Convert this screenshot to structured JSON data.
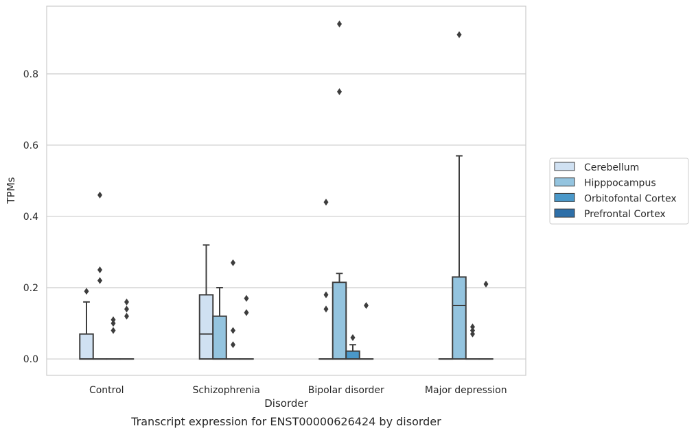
{
  "chart_data": {
    "type": "box",
    "caption": "Transcript expression for ENST00000626424 by disorder",
    "xlabel": "Disorder",
    "ylabel": "TPMs",
    "ylim": [
      -0.046,
      0.99
    ],
    "yticks": [
      0.0,
      0.2,
      0.4,
      0.6,
      0.8
    ],
    "ytick_labels": [
      "0.0",
      "0.2",
      "0.4",
      "0.6",
      "0.8"
    ],
    "grid": "horizontal",
    "legend_position": "right",
    "categories": [
      "Control",
      "Schizophrenia",
      "Bipolar disorder",
      "Major depression"
    ],
    "series": [
      {
        "name": "Cerebellum",
        "color": "#d0e1f2",
        "boxes": [
          {
            "q1": 0.0,
            "median": 0.0,
            "q3": 0.07,
            "whisker_low": 0.0,
            "whisker_high": 0.16,
            "outliers": [
              0.19
            ]
          },
          {
            "q1": 0.0,
            "median": 0.07,
            "q3": 0.18,
            "whisker_low": 0.0,
            "whisker_high": 0.32,
            "outliers": []
          },
          {
            "q1": 0.0,
            "median": 0.0,
            "q3": 0.0,
            "whisker_low": 0.0,
            "whisker_high": 0.0,
            "outliers": [
              0.18,
              0.14,
              0.44
            ]
          },
          {
            "q1": 0.0,
            "median": 0.0,
            "q3": 0.0,
            "whisker_low": 0.0,
            "whisker_high": 0.0,
            "outliers": []
          }
        ]
      },
      {
        "name": "Hipppocampus",
        "color": "#94c4df",
        "boxes": [
          {
            "q1": 0.0,
            "median": 0.0,
            "q3": 0.0,
            "whisker_low": 0.0,
            "whisker_high": 0.0,
            "outliers": [
              0.46,
              0.25,
              0.22
            ]
          },
          {
            "q1": 0.0,
            "median": 0.0,
            "q3": 0.12,
            "whisker_low": 0.0,
            "whisker_high": 0.2,
            "outliers": []
          },
          {
            "q1": 0.0,
            "median": 0.0,
            "q3": 0.215,
            "whisker_low": 0.0,
            "whisker_high": 0.24,
            "outliers": [
              0.94,
              0.75
            ]
          },
          {
            "q1": 0.0,
            "median": 0.15,
            "q3": 0.23,
            "whisker_low": 0.0,
            "whisker_high": 0.57,
            "outliers": [
              0.91
            ]
          }
        ]
      },
      {
        "name": "Orbitofontal Cortex",
        "color": "#4a98c9",
        "boxes": [
          {
            "q1": 0.0,
            "median": 0.0,
            "q3": 0.0,
            "whisker_low": 0.0,
            "whisker_high": 0.0,
            "outliers": [
              0.11,
              0.1,
              0.08
            ]
          },
          {
            "q1": 0.0,
            "median": 0.0,
            "q3": 0.0,
            "whisker_low": 0.0,
            "whisker_high": 0.0,
            "outliers": [
              0.27,
              0.08,
              0.04
            ]
          },
          {
            "q1": 0.0,
            "median": 0.0,
            "q3": 0.022,
            "whisker_low": 0.0,
            "whisker_high": 0.04,
            "outliers": [
              0.06
            ]
          },
          {
            "q1": 0.0,
            "median": 0.0,
            "q3": 0.0,
            "whisker_low": 0.0,
            "whisker_high": 0.0,
            "outliers": [
              0.09,
              0.08,
              0.07
            ]
          }
        ]
      },
      {
        "name": "Prefrontal Cortex",
        "color": "#2e6fa8",
        "boxes": [
          {
            "q1": 0.0,
            "median": 0.0,
            "q3": 0.0,
            "whisker_low": 0.0,
            "whisker_high": 0.0,
            "outliers": [
              0.16,
              0.14,
              0.12
            ]
          },
          {
            "q1": 0.0,
            "median": 0.0,
            "q3": 0.0,
            "whisker_low": 0.0,
            "whisker_high": 0.0,
            "outliers": [
              0.17,
              0.13
            ]
          },
          {
            "q1": 0.0,
            "median": 0.0,
            "q3": 0.0,
            "whisker_low": 0.0,
            "whisker_high": 0.0,
            "outliers": [
              0.15
            ]
          },
          {
            "q1": 0.0,
            "median": 0.0,
            "q3": 0.0,
            "whisker_low": 0.0,
            "whisker_high": 0.0,
            "outliers": [
              0.21
            ]
          }
        ]
      }
    ]
  }
}
